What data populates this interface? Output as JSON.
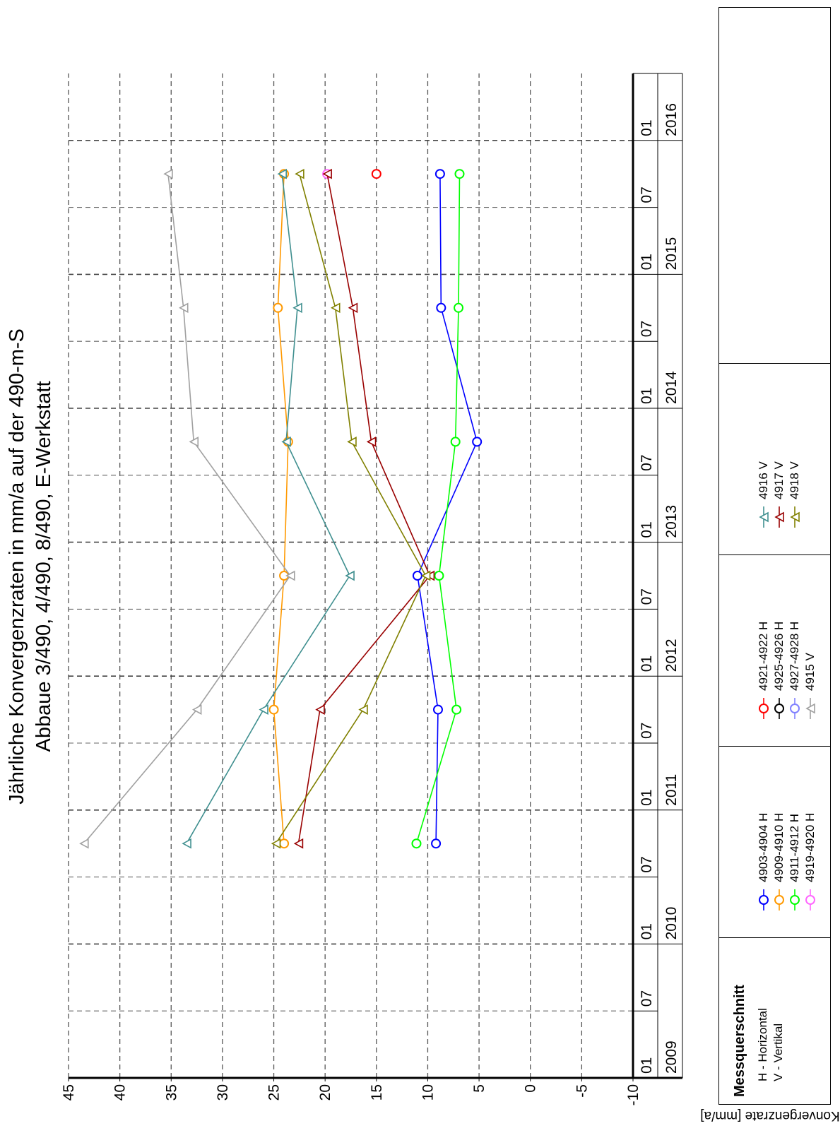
{
  "chart_data": {
    "type": "line",
    "title": "Jährliche Konvergenzraten in mm/a auf der 490-m-S",
    "subtitle": "Abbaue 3/490, 4/490, 8/490, E-Werkstatt",
    "ylabel": "Konvergenzrate [mm/a]",
    "ylim": [
      -10,
      45
    ],
    "yticks": [
      "-10",
      "-5",
      "0",
      "5",
      "10",
      "15",
      "20",
      "25",
      "30",
      "35",
      "40",
      "45"
    ],
    "xlim": [
      "2009-01",
      "2016-07"
    ],
    "x_month_ticks": [
      "01",
      "07",
      "01",
      "07",
      "01",
      "07",
      "01",
      "07",
      "01",
      "07",
      "01",
      "07",
      "01",
      "07",
      "01"
    ],
    "x_year_labels": [
      "2009",
      "2010",
      "2011",
      "2012",
      "2013",
      "2014",
      "2015",
      "2016"
    ],
    "grid": true,
    "colors": {
      "4903-4904 H": "#0000ff",
      "4909-4910 H": "#ff9900",
      "4911-4912 H": "#00ff00",
      "4919-4920 H": "#ff66ff",
      "4921-4922 H": "#ff0000",
      "4925-4926 H": "#000000",
      "4927-4928 H": "#8080ff",
      "4915 V": "#a0a0a0",
      "4916 V": "#3f8f8f",
      "4917 V": "#990000",
      "4918 V": "#808000"
    },
    "series": [
      {
        "name": "4903-4904 H",
        "marker": "circle",
        "points": [
          [
            "2010-10",
            9.2
          ],
          [
            "2011-10",
            9.0
          ],
          [
            "2012-10",
            11.0
          ],
          [
            "2013-10",
            5.2
          ],
          [
            "2014-10",
            8.7
          ],
          [
            "2015-10",
            8.8
          ]
        ]
      },
      {
        "name": "4909-4910 H",
        "marker": "circle",
        "points": [
          [
            "2010-10",
            24.0
          ],
          [
            "2011-10",
            25.0
          ],
          [
            "2012-10",
            24.0
          ],
          [
            "2013-10",
            23.6
          ],
          [
            "2014-10",
            24.6
          ],
          [
            "2015-10",
            24.0
          ]
        ]
      },
      {
        "name": "4911-4912 H",
        "marker": "circle",
        "points": [
          [
            "2010-10",
            11.1
          ],
          [
            "2011-10",
            7.2
          ],
          [
            "2012-10",
            8.9
          ],
          [
            "2013-10",
            7.3
          ],
          [
            "2014-10",
            7.0
          ],
          [
            "2015-10",
            6.9
          ]
        ]
      },
      {
        "name": "4919-4920 H",
        "marker": "circle",
        "points": [
          [
            "2015-10",
            19.8
          ]
        ]
      },
      {
        "name": "4921-4922 H",
        "marker": "circle",
        "points": [
          [
            "2015-10",
            15.0
          ]
        ]
      },
      {
        "name": "4925-4926 H",
        "marker": "circle",
        "points": []
      },
      {
        "name": "4927-4928 H",
        "marker": "circle",
        "points": []
      },
      {
        "name": "4915 V",
        "marker": "triangle",
        "points": [
          [
            "2010-10",
            43.5
          ],
          [
            "2011-10",
            32.5
          ],
          [
            "2012-10",
            23.4
          ],
          [
            "2013-10",
            32.8
          ],
          [
            "2014-10",
            33.8
          ],
          [
            "2015-10",
            35.3
          ]
        ]
      },
      {
        "name": "4916 V",
        "marker": "triangle",
        "points": [
          [
            "2010-10",
            33.5
          ],
          [
            "2011-10",
            26.0
          ],
          [
            "2012-10",
            17.6
          ],
          [
            "2013-10",
            23.8
          ],
          [
            "2014-10",
            22.7
          ],
          [
            "2015-10",
            24.2
          ]
        ]
      },
      {
        "name": "4917 V",
        "marker": "triangle",
        "points": [
          [
            "2010-10",
            22.6
          ],
          [
            "2011-10",
            20.5
          ],
          [
            "2012-10",
            9.8
          ],
          [
            "2013-10",
            15.5
          ],
          [
            "2014-10",
            17.3
          ],
          [
            "2015-10",
            19.8
          ]
        ]
      },
      {
        "name": "4918 V",
        "marker": "triangle",
        "points": [
          [
            "2010-10",
            24.8
          ],
          [
            "2011-10",
            16.3
          ],
          [
            "2012-10",
            10.2
          ],
          [
            "2013-10",
            17.4
          ],
          [
            "2014-10",
            19.0
          ],
          [
            "2015-10",
            22.5
          ]
        ]
      }
    ]
  },
  "legend": {
    "title": "Messquerschnitt",
    "notes": [
      "H - Horizontal",
      "V - Vertikal"
    ],
    "columns": [
      [
        {
          "label": "4903-4904 H",
          "color": "#0000ff",
          "marker": "circle"
        },
        {
          "label": "4909-4910 H",
          "color": "#ff9900",
          "marker": "circle"
        },
        {
          "label": "4911-4912 H",
          "color": "#00ff00",
          "marker": "circle"
        },
        {
          "label": "4919-4920 H",
          "color": "#ff66ff",
          "marker": "circle"
        }
      ],
      [
        {
          "label": "4921-4922 H",
          "color": "#ff0000",
          "marker": "circle"
        },
        {
          "label": "4925-4926 H",
          "color": "#000000",
          "marker": "circle"
        },
        {
          "label": "4927-4928 H",
          "color": "#8080ff",
          "marker": "circle"
        },
        {
          "label": "4915 V",
          "color": "#a0a0a0",
          "marker": "triangle"
        }
      ],
      [
        {
          "label": "4916 V",
          "color": "#3f8f8f",
          "marker": "triangle"
        },
        {
          "label": "4917 V",
          "color": "#990000",
          "marker": "triangle"
        },
        {
          "label": "4918 V",
          "color": "#808000",
          "marker": "triangle"
        }
      ]
    ]
  }
}
